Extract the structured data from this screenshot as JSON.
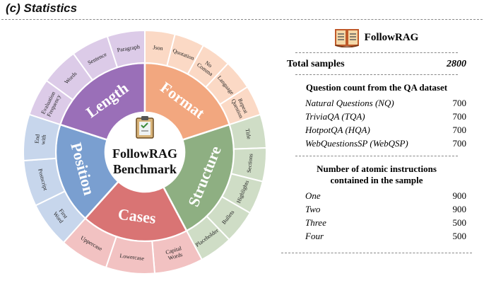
{
  "title": "(c) Statistics",
  "benchmark": {
    "name_line1": "FollowRAG",
    "name_line2": "Benchmark"
  },
  "categories": [
    {
      "name": "Length",
      "color": "#9a6fb8",
      "light": "#dccbe8",
      "items": [
        "Evaluation Frequency",
        "Words",
        "Sentence",
        "Paragraph"
      ]
    },
    {
      "name": "Format",
      "color": "#f2a77f",
      "light": "#fbd9c5",
      "items": [
        "Json",
        "Quotation",
        "No Comma",
        "Language",
        "Repeat Question"
      ]
    },
    {
      "name": "Structure",
      "color": "#8eaf82",
      "light": "#cfddc6",
      "items": [
        "Title",
        "Sections",
        "Highlights",
        "Bullets",
        "Placeholder"
      ]
    },
    {
      "name": "Cases",
      "color": "#d97474",
      "light": "#f2c2c2",
      "items": [
        "Capital Words",
        "Lowercase",
        "Uppercase"
      ]
    },
    {
      "name": "Position",
      "color": "#7a9fd0",
      "light": "#c7d6ec",
      "items": [
        "First Word",
        "Postscript",
        "End with"
      ]
    }
  ],
  "icons": {
    "book": "book-icon",
    "clipboard": "clipboard-icon"
  },
  "panel": {
    "header": "FollowRAG",
    "total_label": "Total samples",
    "total_value": "2800",
    "qa_title": "Question count from the QA dataset",
    "qa": [
      {
        "label": "Natural Questions (NQ)",
        "value": "700"
      },
      {
        "label": "TriviaQA (TQA)",
        "value": "700"
      },
      {
        "label": "HotpotQA (HQA)",
        "value": "700"
      },
      {
        "label": "WebQuestionsSP (WebQSP)",
        "value": "700"
      }
    ],
    "atomic_title_line1": "Number of atomic instructions",
    "atomic_title_line2": "contained in the sample",
    "atomic": [
      {
        "label": "One",
        "value": "900"
      },
      {
        "label": "Two",
        "value": "900"
      },
      {
        "label": "Three",
        "value": "500"
      },
      {
        "label": "Four",
        "value": "500"
      }
    ]
  }
}
